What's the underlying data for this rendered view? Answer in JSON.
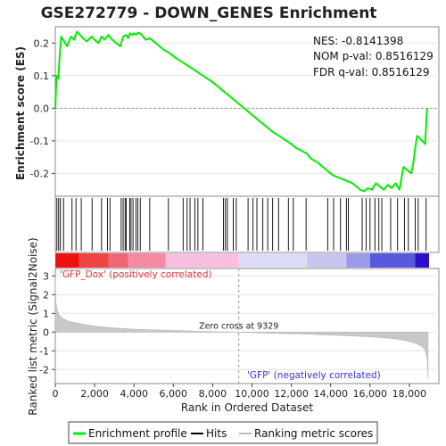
{
  "chart_data": {
    "type": "line",
    "title": "GSE272779 - DOWN_GENES Enrichment",
    "stats": {
      "nes": "NES: -0.8141398",
      "nom_pval": "NOM p-val: 0.8516129",
      "fdr_qval": "FDR q-val: 0.8516129"
    },
    "top_panel": {
      "ylabel": "Enrichment score (ES)",
      "ylim": [
        -0.27,
        0.25
      ],
      "yticks": [
        -0.2,
        -0.1,
        0.0,
        0.1,
        0.2
      ],
      "ytick_labels": [
        "-0.2",
        "-0.1",
        "0.0",
        "0.1",
        "0.2"
      ],
      "series": [
        {
          "name": "Enrichment profile",
          "color": "#00ee00",
          "x": [
            0,
            60,
            150,
            220,
            300,
            400,
            600,
            800,
            950,
            1100,
            1250,
            1400,
            1600,
            1850,
            2000,
            2200,
            2350,
            2500,
            2700,
            2900,
            3100,
            3300,
            3450,
            3600,
            3700,
            3800,
            3900,
            4000,
            4100,
            4200,
            4300,
            4400,
            4600,
            4800,
            5000,
            5200,
            5500,
            5800,
            6100,
            6500,
            7000,
            7500,
            8000,
            8500,
            9000,
            9500,
            10000,
            10500,
            11000,
            11500,
            12000,
            12200,
            12500,
            12800,
            13000,
            13300,
            13600,
            13900,
            14100,
            14300,
            14500,
            14700,
            14900,
            15100,
            15300,
            15500,
            15700,
            15900,
            16100,
            16300,
            16500,
            16700,
            16900,
            17100,
            17300,
            17500,
            17700,
            17900,
            18100,
            18200,
            18300,
            18400,
            18500,
            18650,
            18800,
            18900
          ],
          "y": [
            0.0,
            0.1,
            0.09,
            0.16,
            0.22,
            0.21,
            0.19,
            0.22,
            0.21,
            0.235,
            0.225,
            0.215,
            0.205,
            0.22,
            0.21,
            0.2,
            0.22,
            0.21,
            0.225,
            0.21,
            0.2,
            0.19,
            0.22,
            0.225,
            0.215,
            0.23,
            0.225,
            0.23,
            0.225,
            0.232,
            0.23,
            0.225,
            0.21,
            0.215,
            0.205,
            0.195,
            0.18,
            0.17,
            0.155,
            0.14,
            0.12,
            0.1,
            0.08,
            0.055,
            0.03,
            0.005,
            -0.02,
            -0.045,
            -0.07,
            -0.09,
            -0.11,
            -0.12,
            -0.13,
            -0.14,
            -0.155,
            -0.165,
            -0.18,
            -0.195,
            -0.205,
            -0.21,
            -0.215,
            -0.22,
            -0.225,
            -0.23,
            -0.24,
            -0.25,
            -0.255,
            -0.245,
            -0.25,
            -0.23,
            -0.24,
            -0.25,
            -0.235,
            -0.245,
            -0.23,
            -0.25,
            -0.18,
            -0.19,
            -0.2,
            -0.17,
            -0.12,
            -0.085,
            -0.09,
            -0.1,
            -0.11,
            0.0
          ]
        }
      ]
    },
    "hits": [
      80,
      170,
      260,
      420,
      850,
      1050,
      1320,
      1870,
      2350,
      2650,
      2780,
      3350,
      3450,
      3550,
      3600,
      3780,
      3850,
      3950,
      4100,
      4200,
      4320,
      4800,
      5750,
      6500,
      6700,
      6850,
      7100,
      7250,
      7500,
      8550,
      8650,
      8750,
      9050,
      9200,
      9800,
      10050,
      10250,
      10550,
      10800,
      11050,
      11350,
      11850,
      12100,
      12750,
      13850,
      14150,
      14500,
      14800,
      14900,
      15600,
      15800,
      16000,
      16250,
      16450,
      16600,
      17050,
      17400,
      17750,
      17950,
      18300,
      18450,
      18850
    ],
    "bottom_panel": {
      "ylabel": "Ranked list metric (Signal2Noise)",
      "xlabel": "Rank in Ordered Dataset",
      "xlim": [
        0,
        19500
      ],
      "ylim": [
        -2.75,
        3.4
      ],
      "xticks": [
        0,
        2000,
        4000,
        6000,
        8000,
        10000,
        12000,
        14000,
        16000,
        18000
      ],
      "xtick_labels": [
        "0",
        "2,000",
        "4,000",
        "6,000",
        "8,000",
        "10,000",
        "12,000",
        "14,000",
        "16,000",
        "18,000"
      ],
      "yticks": [
        -2,
        -1,
        0,
        1,
        2,
        3
      ],
      "ytick_labels": [
        "-2",
        "-1",
        "0",
        "1",
        "2",
        "3"
      ],
      "zero_cross": 9329,
      "zero_cross_label": "Zero cross at 9329",
      "pos_label": "'GFP_Dox' (positively correlated)",
      "neg_label": "'GFP' (negatively correlated)",
      "metric": {
        "x": [
          0,
          30,
          100,
          200,
          400,
          700,
          1000,
          1500,
          2000,
          3000,
          4000,
          5000,
          6000,
          7000,
          8000,
          9329,
          10000,
          11000,
          12000,
          13000,
          14000,
          15000,
          16000,
          17000,
          17500,
          18000,
          18300,
          18600,
          18800,
          18900,
          18950
        ],
        "y": [
          2.9,
          1.6,
          1.2,
          0.9,
          0.72,
          0.58,
          0.5,
          0.4,
          0.32,
          0.22,
          0.16,
          0.12,
          0.09,
          0.06,
          0.03,
          0.0,
          -0.03,
          -0.06,
          -0.09,
          -0.12,
          -0.16,
          -0.2,
          -0.25,
          -0.33,
          -0.4,
          -0.5,
          -0.6,
          -0.75,
          -0.95,
          -1.4,
          -2.5
        ]
      }
    },
    "color_bar": {
      "edges": [
        0,
        1200,
        2700,
        3700,
        5600,
        9329,
        12800,
        14800,
        16000,
        18300,
        19000
      ],
      "colors": [
        "#ee1111",
        "#ee4444",
        "#f06677",
        "#f58aa3",
        "#f8bfe0",
        "#dcdcf5",
        "#c6c6ee",
        "#9a9ae8",
        "#5858dd",
        "#2a10cc"
      ]
    },
    "legend": {
      "items": [
        {
          "label": "Enrichment profile",
          "color": "#00ee00"
        },
        {
          "label": "Hits",
          "color": "#000000"
        },
        {
          "label": "Ranking metric scores",
          "color": "#bbbbbb"
        }
      ]
    }
  }
}
